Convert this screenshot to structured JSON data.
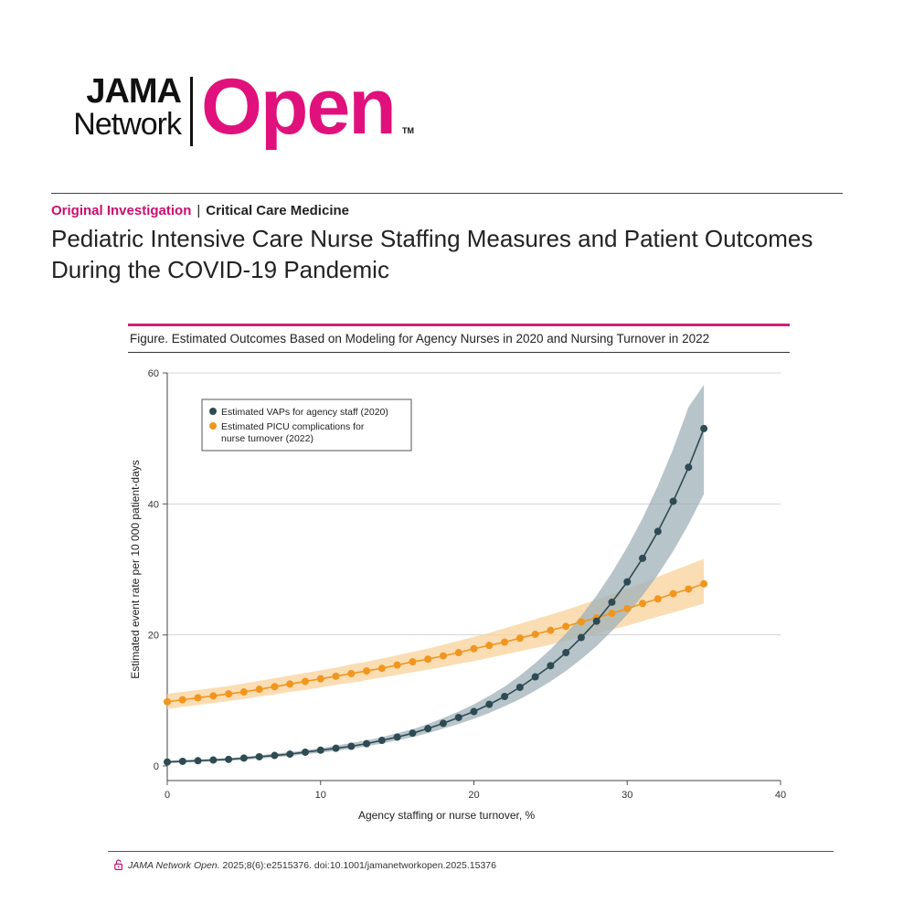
{
  "logo": {
    "line1": "JAMA",
    "line2": "Network",
    "brand": "Open",
    "tm": "TM"
  },
  "header": {
    "section": "Original Investigation",
    "separator": "|",
    "specialty": "Critical Care Medicine",
    "title": "Pediatric Intensive Care Nurse Staffing Measures and Patient Outcomes During the COVID-19 Pandemic"
  },
  "figure": {
    "title": "Figure. Estimated Outcomes Based on Modeling for Agency Nurses in 2020 and Nursing Turnover in 2022"
  },
  "citation": {
    "journal": "JAMA Network Open.",
    "text": " 2025;8(6):e2515376. doi:10.1001/jamanetworkopen.2025.15376"
  },
  "colors": {
    "brand_pink": "#e0117c",
    "vap": "#2e4a52",
    "vap_band": "#9fb0b8",
    "picu": "#f0961f",
    "picu_band": "#f9d19a"
  },
  "icons": {
    "citation": "open-lock-icon"
  },
  "chart_data": {
    "type": "line",
    "xlabel": "Agency staffing or nurse turnover, %",
    "ylabel": "Estimated event rate per 10 000 patient-days",
    "xlim": [
      0,
      40
    ],
    "ylim": [
      0,
      60
    ],
    "xticks": [
      0,
      10,
      20,
      30,
      40
    ],
    "yticks": [
      0,
      20,
      40,
      60
    ],
    "grid": "horizontal",
    "legend_position": "top-left",
    "x": [
      0,
      1,
      2,
      3,
      4,
      5,
      6,
      7,
      8,
      9,
      10,
      11,
      12,
      13,
      14,
      15,
      16,
      17,
      18,
      19,
      20,
      21,
      22,
      23,
      24,
      25,
      26,
      27,
      28,
      29,
      30,
      31,
      32,
      33,
      34,
      35
    ],
    "series": [
      {
        "name": "Estimated VAPs for agency staff (2020)",
        "values": [
          0.6,
          0.7,
          0.8,
          0.9,
          1.0,
          1.2,
          1.4,
          1.6,
          1.8,
          2.1,
          2.4,
          2.7,
          3.0,
          3.4,
          3.9,
          4.4,
          5.0,
          5.7,
          6.5,
          7.4,
          8.3,
          9.4,
          10.6,
          12.0,
          13.6,
          15.3,
          17.3,
          19.6,
          22.1,
          25.0,
          28.1,
          31.7,
          35.8,
          40.4,
          45.6,
          51.5
        ],
        "ci_lower": [
          0.4,
          0.5,
          0.6,
          0.7,
          0.8,
          0.9,
          1.1,
          1.3,
          1.5,
          1.8,
          2.0,
          2.3,
          2.6,
          3.0,
          3.4,
          3.9,
          4.4,
          5.0,
          5.7,
          6.4,
          7.2,
          8.1,
          9.1,
          10.2,
          11.5,
          12.9,
          14.5,
          16.3,
          18.3,
          20.6,
          23.1,
          26.0,
          29.2,
          32.8,
          36.9,
          41.5
        ],
        "ci_upper": [
          0.8,
          0.9,
          1.0,
          1.1,
          1.2,
          1.4,
          1.6,
          1.9,
          2.1,
          2.4,
          2.7,
          3.1,
          3.5,
          3.9,
          4.4,
          5.0,
          5.6,
          6.4,
          7.3,
          8.3,
          9.4,
          10.7,
          12.1,
          13.8,
          15.7,
          17.8,
          20.2,
          22.9,
          26.0,
          29.5,
          33.4,
          37.8,
          42.8,
          48.4,
          54.8,
          58.2
        ]
      },
      {
        "name": "Estimated PICU complications for nurse turnover (2022)",
        "values": [
          9.8,
          10.1,
          10.4,
          10.7,
          11.0,
          11.3,
          11.7,
          12.1,
          12.5,
          12.9,
          13.3,
          13.7,
          14.1,
          14.5,
          14.9,
          15.4,
          15.9,
          16.3,
          16.8,
          17.3,
          17.9,
          18.4,
          18.9,
          19.5,
          20.1,
          20.7,
          21.3,
          22.0,
          22.6,
          23.3,
          24.0,
          24.8,
          25.5,
          26.3,
          27.0,
          27.8
        ],
        "ci_lower": [
          8.7,
          9.0,
          9.3,
          9.6,
          9.9,
          10.2,
          10.6,
          10.9,
          11.3,
          11.6,
          12.0,
          12.4,
          12.7,
          13.1,
          13.5,
          13.9,
          14.3,
          14.7,
          15.1,
          15.6,
          16.0,
          16.5,
          17.0,
          17.5,
          18.0,
          18.5,
          19.1,
          19.6,
          20.2,
          20.8,
          21.4,
          22.1,
          22.8,
          23.4,
          24.1,
          24.8
        ],
        "ci_upper": [
          11.0,
          11.3,
          11.6,
          11.9,
          12.2,
          12.6,
          13.0,
          13.4,
          13.8,
          14.2,
          14.6,
          15.0,
          15.5,
          15.9,
          16.4,
          16.9,
          17.4,
          17.9,
          18.5,
          19.1,
          19.7,
          20.3,
          21.0,
          21.7,
          22.4,
          23.1,
          23.8,
          24.6,
          25.4,
          26.2,
          27.0,
          27.9,
          28.9,
          29.8,
          30.7,
          31.6
        ]
      }
    ]
  }
}
